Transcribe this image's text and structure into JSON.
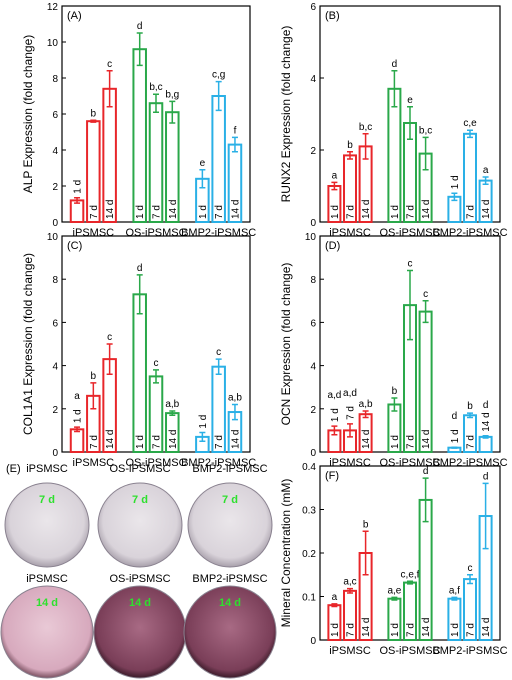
{
  "chart_data": [
    {
      "type": "bar",
      "panel_label": "(A)",
      "ylabel": "ALP Expression (fold change)",
      "categories": [
        "iPSMSC",
        "OS-iPSMSC",
        "BMP2-iPSMSC"
      ],
      "colors": [
        "#e8262a",
        "#2aa84a",
        "#2ab0e6"
      ],
      "ylim": [
        0,
        12
      ],
      "yticks": [
        0,
        2,
        4,
        6,
        8,
        10,
        12
      ],
      "series": [
        {
          "name": "1 d",
          "values": [
            1.2,
            9.6,
            2.4
          ],
          "errors": [
            0.15,
            0.9,
            0.5
          ],
          "annotations": [
            null,
            "d",
            "e"
          ]
        },
        {
          "name": "7 d",
          "values": [
            5.6,
            6.6,
            7.0
          ],
          "errors": [
            0.05,
            0.5,
            0.8
          ],
          "annotations": [
            "b",
            "b,c",
            "c,g"
          ]
        },
        {
          "name": "14 d",
          "values": [
            7.4,
            6.1,
            4.3
          ],
          "errors": [
            1.0,
            0.6,
            0.4
          ],
          "annotations": [
            "c",
            "b,g",
            "f"
          ]
        }
      ]
    },
    {
      "type": "bar",
      "panel_label": "(B)",
      "ylabel": "RUNX2 Expression (fold change)",
      "categories": [
        "iPSMSC",
        "OS-iPSMSC",
        "BMP2-iPSMSC"
      ],
      "colors": [
        "#e8262a",
        "#2aa84a",
        "#2ab0e6"
      ],
      "ylim": [
        0,
        6
      ],
      "yticks": [
        0,
        2,
        4,
        6
      ],
      "series": [
        {
          "name": "1 d",
          "values": [
            1.0,
            3.7,
            0.7
          ],
          "errors": [
            0.1,
            0.5,
            0.1
          ],
          "annotations": [
            "a",
            "d",
            null
          ]
        },
        {
          "name": "7 d",
          "values": [
            1.85,
            2.75,
            2.45
          ],
          "errors": [
            0.1,
            0.45,
            0.1
          ],
          "annotations": [
            "b",
            "e",
            "c,e"
          ]
        },
        {
          "name": "14 d",
          "values": [
            2.1,
            1.9,
            1.15
          ],
          "errors": [
            0.35,
            0.45,
            0.1
          ],
          "annotations": [
            "b,c",
            "b,c",
            "a"
          ]
        }
      ]
    },
    {
      "type": "bar",
      "panel_label": "(C)",
      "ylabel": "COL1A1 Expression (fold change)",
      "categories": [
        "iPSMSC",
        "OS-iPSMSC",
        "BMP2-iPSMSC"
      ],
      "colors": [
        "#e8262a",
        "#2aa84a",
        "#2ab0e6"
      ],
      "ylim": [
        0,
        10
      ],
      "yticks": [
        0,
        2,
        4,
        6,
        8,
        10
      ],
      "series": [
        {
          "name": "1 d",
          "values": [
            1.05,
            7.3,
            0.7
          ],
          "errors": [
            0.1,
            0.9,
            0.2
          ],
          "annotations": [
            "a",
            "d",
            null
          ]
        },
        {
          "name": "7 d",
          "values": [
            2.6,
            3.5,
            3.95
          ],
          "errors": [
            0.6,
            0.3,
            0.35
          ],
          "annotations": [
            "b",
            "c",
            "c"
          ]
        },
        {
          "name": "14 d",
          "values": [
            4.3,
            1.8,
            1.85
          ],
          "errors": [
            0.7,
            0.1,
            0.35
          ],
          "annotations": [
            "c",
            "a,b",
            "a,b"
          ]
        }
      ]
    },
    {
      "type": "bar",
      "panel_label": "(D)",
      "ylabel": "OCN Expression (fold change)",
      "categories": [
        "iPSMSC",
        "OS-iPSMSC",
        "BMP2-iPSMSC"
      ],
      "colors": [
        "#e8262a",
        "#2aa84a",
        "#2ab0e6"
      ],
      "ylim": [
        0,
        10
      ],
      "yticks": [
        0,
        2,
        4,
        6,
        8,
        10
      ],
      "series": [
        {
          "name": "1 d",
          "values": [
            1.0,
            2.2,
            0.2
          ],
          "errors": [
            0.2,
            0.3,
            0.02
          ],
          "annotations": [
            "a,d",
            "b",
            "d"
          ]
        },
        {
          "name": "7 d",
          "values": [
            1.0,
            6.8,
            1.7
          ],
          "errors": [
            0.3,
            1.6,
            0.1
          ],
          "annotations": [
            "a,d",
            "c",
            "b"
          ]
        },
        {
          "name": "14 d",
          "values": [
            1.75,
            6.5,
            0.7
          ],
          "errors": [
            0.15,
            0.5,
            0.05
          ],
          "annotations": [
            "a,b",
            "c",
            "d"
          ]
        }
      ]
    },
    {
      "type": "bar",
      "panel_label": "(F)",
      "ylabel": "Mineral Concentration (mM)",
      "categories": [
        "iPSMSC",
        "OS-iPSMSC",
        "BMP2-iPSMSC"
      ],
      "colors": [
        "#e8262a",
        "#2aa84a",
        "#2ab0e6"
      ],
      "ylim": [
        0,
        0.4
      ],
      "yticks": [
        0,
        0.1,
        0.2,
        0.3,
        0.4
      ],
      "series": [
        {
          "name": "1 d",
          "values": [
            0.08,
            0.095,
            0.095
          ],
          "errors": [
            0.003,
            0.003,
            0.003
          ],
          "annotations": [
            "a",
            "a,e",
            "a,f"
          ]
        },
        {
          "name": "7 d",
          "values": [
            0.113,
            0.132,
            0.14
          ],
          "errors": [
            0.005,
            0.003,
            0.01
          ],
          "annotations": [
            "a,c",
            "c,e,f",
            "c"
          ]
        },
        {
          "name": "14 d",
          "values": [
            0.2,
            0.322,
            0.285
          ],
          "errors": [
            0.05,
            0.05,
            0.075
          ],
          "annotations": [
            "b",
            "d",
            "d"
          ]
        }
      ]
    }
  ],
  "photo_panel": {
    "panel_label": "(E)",
    "rows": [
      {
        "time": "7 d",
        "wells": [
          "iPSMSC",
          "OS-iPSMSC",
          "BMP2-iPSMSC"
        ]
      },
      {
        "time": "14 d",
        "wells": [
          "iPSMSC",
          "OS-iPSMSC",
          "BMP2-iPSMSC"
        ]
      }
    ]
  }
}
